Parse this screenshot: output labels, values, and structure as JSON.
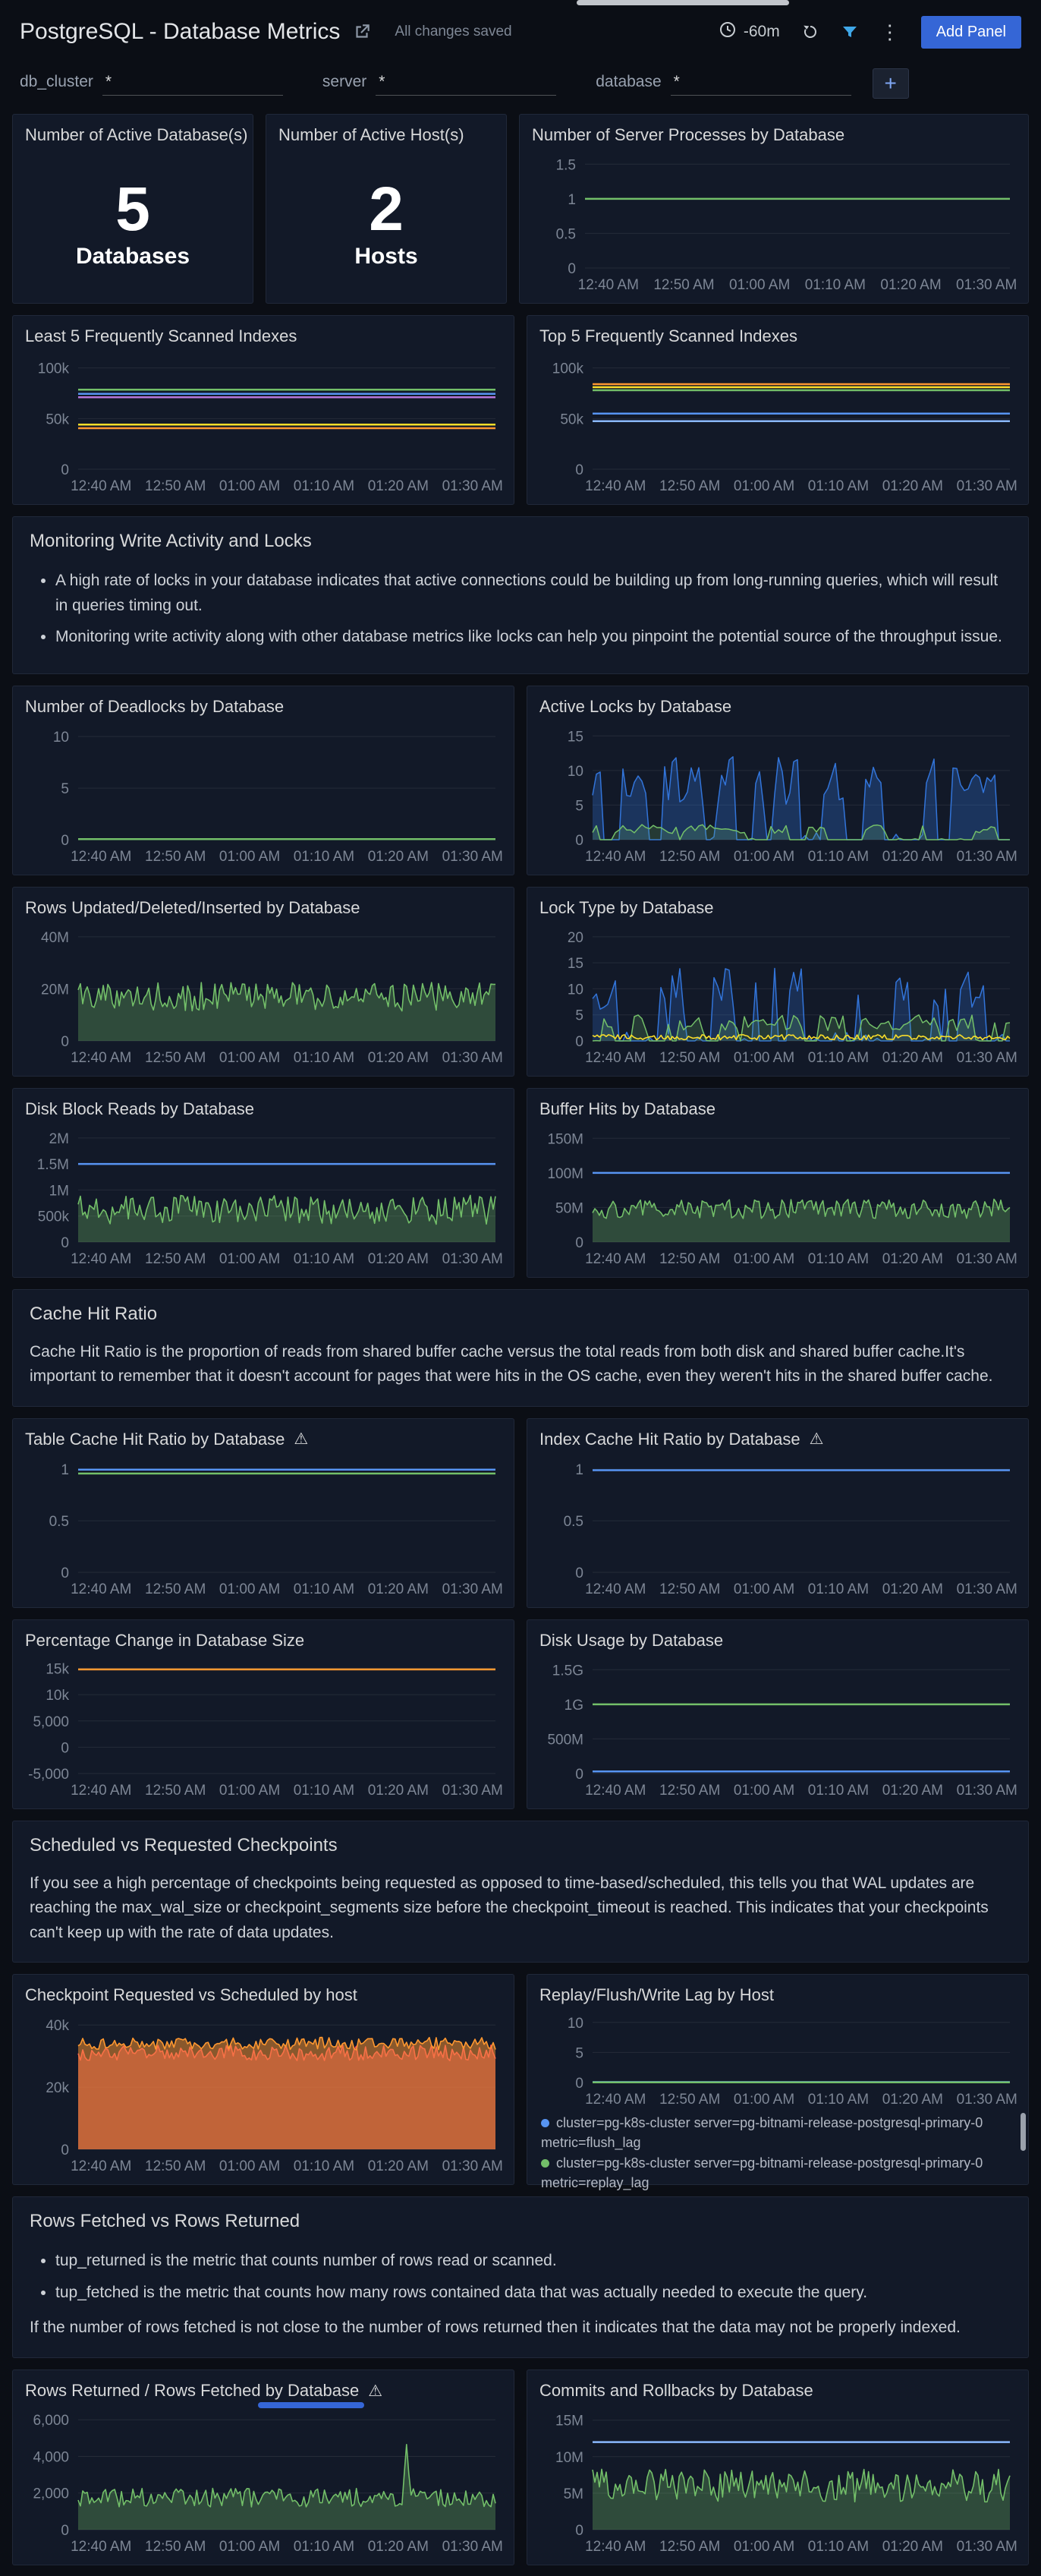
{
  "header": {
    "title": "PostgreSQL - Database Metrics",
    "saved_status": "All changes saved",
    "time_range": "-60m",
    "add_panel_label": "Add Panel"
  },
  "icons": {
    "kebab": "⋮",
    "plus": "+",
    "warning": "⚠",
    "share": "open-share-icon",
    "clock": "clock-icon",
    "refresh": "refresh-icon",
    "filter": "funnel-icon"
  },
  "variables": [
    {
      "label": "db_cluster",
      "value": "*"
    },
    {
      "label": "server",
      "value": "*"
    },
    {
      "label": "database",
      "value": "*"
    }
  ],
  "x_ticks": [
    "12:40 AM",
    "12:50 AM",
    "01:00 AM",
    "01:10 AM",
    "01:20 AM",
    "01:30 AM"
  ],
  "rows": [
    {
      "kind": "panels",
      "panels": [
        {
          "type": "stat",
          "title": "Number of Active Database(s)",
          "value": "5",
          "label": "Databases"
        },
        {
          "type": "stat",
          "title": "Number of Active Host(s)",
          "value": "2",
          "label": "Hosts"
        },
        {
          "type": "timeseries",
          "title": "Number of Server Processes by Database",
          "y": {
            "min": 0,
            "max": 1.58,
            "ticks": [
              {
                "v": 0,
                "label": "0"
              },
              {
                "v": 0.5,
                "label": "0.5"
              },
              {
                "v": 1,
                "label": "1"
              },
              {
                "v": 1.5,
                "label": "1.5"
              }
            ]
          },
          "series": [
            {
              "kind": "flat",
              "color": "#73BF69",
              "value": 1
            }
          ]
        }
      ]
    },
    {
      "kind": "panels",
      "panels": [
        {
          "type": "timeseries",
          "title": "Least 5 Frequently Scanned Indexes",
          "y": {
            "min": 0,
            "max": 108000,
            "ticks": [
              {
                "v": 0,
                "label": "0"
              },
              {
                "v": 50000,
                "label": "50k"
              },
              {
                "v": 100000,
                "label": "100k"
              }
            ]
          },
          "series": [
            {
              "kind": "flat",
              "color": "#73BF69",
              "value": 78500
            },
            {
              "kind": "flat",
              "color": "#5794F2",
              "value": 74500
            },
            {
              "kind": "flat",
              "color": "#B877D9",
              "value": 71000
            },
            {
              "kind": "flat",
              "color": "#FADE2A",
              "value": 44000
            },
            {
              "kind": "flat",
              "color": "#FF9830",
              "value": 40500
            }
          ]
        },
        {
          "type": "timeseries",
          "title": "Top 5 Frequently Scanned Indexes",
          "y": {
            "min": 0,
            "max": 108000,
            "ticks": [
              {
                "v": 0,
                "label": "0"
              },
              {
                "v": 50000,
                "label": "50k"
              },
              {
                "v": 100000,
                "label": "100k"
              }
            ]
          },
          "series": [
            {
              "kind": "flat",
              "color": "#FF9830",
              "value": 84000
            },
            {
              "kind": "flat",
              "color": "#FADE2A",
              "value": 81000
            },
            {
              "kind": "flat",
              "color": "#73BF69",
              "value": 78000
            },
            {
              "kind": "flat",
              "color": "#5794F2",
              "value": 55000
            },
            {
              "kind": "flat",
              "color": "#8AB8FF",
              "value": 47500
            }
          ]
        }
      ]
    },
    {
      "kind": "text",
      "title": "Monitoring Write Activity and Locks",
      "bullets": [
        "A high rate of locks in your database indicates that active connections could be building up from long-running queries, which will result in queries timing out.",
        "Monitoring write activity along with other database metrics like locks can help you pinpoint the potential source of the throughput issue."
      ],
      "paragraphs": []
    },
    {
      "kind": "panels",
      "panels": [
        {
          "type": "timeseries",
          "title": "Number of Deadlocks by Database",
          "y": {
            "min": 0,
            "max": 10.6,
            "ticks": [
              {
                "v": 0,
                "label": "0"
              },
              {
                "v": 5,
                "label": "5"
              },
              {
                "v": 10,
                "label": "10"
              }
            ]
          },
          "series": [
            {
              "kind": "flat",
              "color": "#73BF69",
              "value": 0.06
            }
          ]
        },
        {
          "type": "timeseries",
          "title": "Active Locks by Database",
          "y": {
            "min": 0,
            "max": 15.8,
            "ticks": [
              {
                "v": 0,
                "label": "0"
              },
              {
                "v": 5,
                "label": "5"
              },
              {
                "v": 10,
                "label": "10"
              },
              {
                "v": 15,
                "label": "15"
              }
            ]
          },
          "series": [
            {
              "kind": "spikes",
              "color": "#3274D9",
              "max": 12,
              "density": 0.9,
              "fill": 0.3
            },
            {
              "kind": "spikes",
              "color": "#73BF69",
              "max": 2.2,
              "density": 0.9,
              "fill": 0.2
            }
          ]
        }
      ]
    },
    {
      "kind": "panels",
      "panels": [
        {
          "type": "timeseries",
          "title": "Rows Updated/Deleted/Inserted by Database",
          "y": {
            "min": 0,
            "max": 42000000,
            "ticks": [
              {
                "v": 0,
                "label": "0"
              },
              {
                "v": 20000000,
                "label": "20M"
              },
              {
                "v": 40000000,
                "label": "40M"
              }
            ]
          },
          "series": [
            {
              "kind": "noise",
              "color": "#73BF69",
              "base": 17000000,
              "amp": 5500000,
              "fill": 0.3
            }
          ]
        },
        {
          "type": "timeseries",
          "title": "Lock Type by Database",
          "y": {
            "min": 0,
            "max": 21,
            "ticks": [
              {
                "v": 0,
                "label": "0"
              },
              {
                "v": 5,
                "label": "5"
              },
              {
                "v": 10,
                "label": "10"
              },
              {
                "v": 15,
                "label": "15"
              },
              {
                "v": 20,
                "label": "20"
              }
            ]
          },
          "series": [
            {
              "kind": "spikes",
              "color": "#3274D9",
              "max": 14,
              "density": 0.8,
              "fill": 0.25
            },
            {
              "kind": "spikes",
              "color": "#73BF69",
              "max": 5,
              "density": 1.2,
              "fill": 0.2
            },
            {
              "kind": "noise",
              "color": "#FADE2A",
              "base": 0.7,
              "amp": 0.5,
              "fill": 0
            }
          ]
        }
      ]
    },
    {
      "kind": "panels",
      "panels": [
        {
          "type": "timeseries",
          "title": "Disk Block Reads by Database",
          "y": {
            "min": 0,
            "max": 2100000,
            "ticks": [
              {
                "v": 0,
                "label": "0"
              },
              {
                "v": 500000,
                "label": "500k"
              },
              {
                "v": 1000000,
                "label": "1M"
              },
              {
                "v": 1500000,
                "label": "1.5M"
              },
              {
                "v": 2000000,
                "label": "2M"
              }
            ]
          },
          "series": [
            {
              "kind": "flat",
              "color": "#5794F2",
              "value": 1500000
            },
            {
              "kind": "noise",
              "color": "#73BF69",
              "base": 620000,
              "amp": 280000,
              "fill": 0.3
            }
          ]
        },
        {
          "type": "timeseries",
          "title": "Buffer Hits by Database",
          "y": {
            "min": 0,
            "max": 158000000,
            "ticks": [
              {
                "v": 0,
                "label": "0"
              },
              {
                "v": 50000000,
                "label": "50M"
              },
              {
                "v": 100000000,
                "label": "100M"
              },
              {
                "v": 150000000,
                "label": "150M"
              }
            ]
          },
          "series": [
            {
              "kind": "flat",
              "color": "#5794F2",
              "value": 100000000
            },
            {
              "kind": "noise",
              "color": "#73BF69",
              "base": 48000000,
              "amp": 14000000,
              "fill": 0.3
            }
          ]
        }
      ]
    },
    {
      "kind": "text",
      "title": "Cache Hit Ratio",
      "bullets": [],
      "paragraphs": [
        "Cache Hit Ratio is the proportion of reads from shared buffer cache versus the total reads from both disk and shared buffer cache.It's important to remember that it doesn't account for pages that were hits in the OS cache, even they weren't hits in the shared buffer cache."
      ]
    },
    {
      "kind": "panels",
      "panels": [
        {
          "type": "timeseries",
          "warning": true,
          "title": "Table Cache Hit Ratio by Database",
          "y": {
            "min": 0,
            "max": 1.06,
            "ticks": [
              {
                "v": 0,
                "label": "0"
              },
              {
                "v": 0.5,
                "label": "0.5"
              },
              {
                "v": 1,
                "label": "1"
              }
            ]
          },
          "series": [
            {
              "kind": "flat",
              "color": "#5794F2",
              "value": 0.995
            },
            {
              "kind": "flat",
              "color": "#73BF69",
              "value": 0.958
            }
          ]
        },
        {
          "type": "timeseries",
          "warning": true,
          "title": "Index Cache Hit Ratio by Database",
          "y": {
            "min": 0,
            "max": 1.06,
            "ticks": [
              {
                "v": 0,
                "label": "0"
              },
              {
                "v": 0.5,
                "label": "0.5"
              },
              {
                "v": 1,
                "label": "1"
              }
            ]
          },
          "series": [
            {
              "kind": "flat",
              "color": "#5794F2",
              "value": 0.99
            }
          ]
        }
      ]
    },
    {
      "kind": "panels",
      "panels": [
        {
          "type": "timeseries",
          "title": "Percentage Change in Database Size",
          "y": {
            "min": -5000,
            "max": 15800,
            "ticks": [
              {
                "v": -5000,
                "label": "-5,000"
              },
              {
                "v": 0,
                "label": "0"
              },
              {
                "v": 5000,
                "label": "5,000"
              },
              {
                "v": 10000,
                "label": "10k"
              },
              {
                "v": 15000,
                "label": "15k"
              }
            ]
          },
          "series": [
            {
              "kind": "flat",
              "color": "#FF9830",
              "value": 14800
            }
          ]
        },
        {
          "type": "timeseries",
          "title": "Disk Usage by Database",
          "y": {
            "min": 0,
            "max": 1580000000,
            "ticks": [
              {
                "v": 0,
                "label": "0"
              },
              {
                "v": 500000000,
                "label": "500M"
              },
              {
                "v": 1000000000,
                "label": "1G"
              },
              {
                "v": 1500000000,
                "label": "1.5G"
              }
            ]
          },
          "series": [
            {
              "kind": "flat",
              "color": "#73BF69",
              "value": 1000000000
            },
            {
              "kind": "flat",
              "color": "#5794F2",
              "value": 30000000
            }
          ]
        }
      ]
    },
    {
      "kind": "text",
      "title": "Scheduled vs Requested Checkpoints",
      "bullets": [],
      "paragraphs": [
        "If you see a high percentage of checkpoints being requested as opposed to time-based/scheduled, this tells you that WAL updates are reaching the max_wal_size or checkpoint_segments size before the checkpoint_timeout is reached. This indicates that your checkpoints can't keep up with the rate of data updates."
      ]
    },
    {
      "kind": "panels",
      "panels": [
        {
          "type": "timeseries",
          "title": "Checkpoint Requested vs Scheduled by host",
          "y": {
            "min": 0,
            "max": 42000,
            "ticks": [
              {
                "v": 0,
                "label": "0"
              },
              {
                "v": 20000,
                "label": "20k"
              },
              {
                "v": 40000,
                "label": "40k"
              }
            ]
          },
          "series": [
            {
              "kind": "noise",
              "color": "#F2495C",
              "base": 31000,
              "amp": 2500,
              "fill": 0.5
            },
            {
              "kind": "noise",
              "color": "#FF9830",
              "base": 34000,
              "amp": 2000,
              "fill": 0.5
            }
          ]
        },
        {
          "type": "timeseries",
          "title": "Replay/Flush/Write Lag by Host",
          "y": {
            "min": 0,
            "max": 10.6,
            "ticks": [
              {
                "v": 0,
                "label": "0"
              },
              {
                "v": 5,
                "label": "5"
              },
              {
                "v": 10,
                "label": "10"
              }
            ]
          },
          "series": [
            {
              "kind": "flat",
              "color": "#5794F2",
              "value": 0.07
            },
            {
              "kind": "flat",
              "color": "#73BF69",
              "value": 0.03
            }
          ],
          "legend": [
            {
              "color": "#5794F2",
              "label": "cluster=pg-k8s-cluster server=pg-bitnami-release-postgresql-primary-0 metric=flush_lag"
            },
            {
              "color": "#73BF69",
              "label": "cluster=pg-k8s-cluster server=pg-bitnami-release-postgresql-primary-0 metric=replay_lag"
            }
          ]
        }
      ]
    },
    {
      "kind": "text",
      "title": "Rows Fetched vs Rows Returned",
      "bullets": [
        "tup_returned is the metric that counts number of rows read or scanned.",
        "tup_fetched is the metric that counts how many rows contained data that was actually needed to execute the query."
      ],
      "paragraphs": [
        "If the number of rows fetched is not close to the number of rows returned then it indicates that the data may not be properly indexed."
      ]
    },
    {
      "kind": "panels",
      "panels": [
        {
          "type": "timeseries",
          "warning": true,
          "title": "Rows Returned / Rows Fetched by Database",
          "y": {
            "min": 0,
            "max": 6300,
            "ticks": [
              {
                "v": 0,
                "label": "0"
              },
              {
                "v": 2000,
                "label": "2,000"
              },
              {
                "v": 4000,
                "label": "4,000"
              },
              {
                "v": 6000,
                "label": "6,000"
              }
            ]
          },
          "series": [
            {
              "kind": "noise",
              "color": "#73BF69",
              "base": 1750,
              "amp": 520,
              "fill": 0.3,
              "spike": {
                "frac": 0.785,
                "value": 4650
              }
            }
          ]
        },
        {
          "type": "timeseries",
          "title": "Commits and Rollbacks by Database",
          "y": {
            "min": 0,
            "max": 15800000,
            "ticks": [
              {
                "v": 0,
                "label": "0"
              },
              {
                "v": 5000000,
                "label": "5M"
              },
              {
                "v": 10000000,
                "label": "10M"
              },
              {
                "v": 15000000,
                "label": "15M"
              }
            ]
          },
          "series": [
            {
              "kind": "flat",
              "color": "#8AB8FF",
              "value": 12000000
            },
            {
              "kind": "noise",
              "color": "#73BF69",
              "base": 6000000,
              "amp": 2300000,
              "fill": 0.3
            }
          ]
        }
      ]
    }
  ]
}
